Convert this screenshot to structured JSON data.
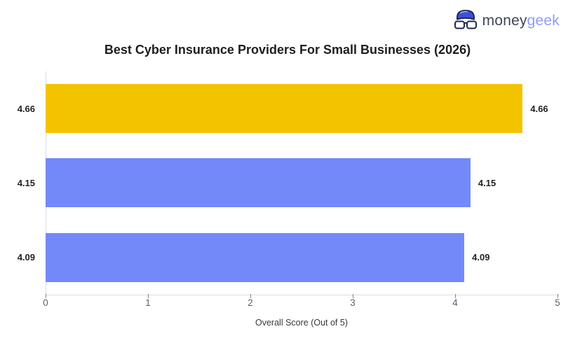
{
  "logo": {
    "brand_primary": "money",
    "brand_secondary": "geek",
    "icon": "geek-beanie-glasses-icon",
    "colors": {
      "primary_text": "#3E4656",
      "secondary_text": "#8D9EF8",
      "hat_fill": "#3B51D8",
      "hat_highlight": "#8FA2F5",
      "outline": "#20284A"
    }
  },
  "chart_data": {
    "type": "bar",
    "orientation": "horizontal",
    "title": "Best Cyber Insurance Providers For Small Businesses (2026)",
    "categories": [
      "4.66",
      "4.15",
      "4.09"
    ],
    "values": [
      4.66,
      4.15,
      4.09
    ],
    "value_labels": [
      "4.66",
      "4.15",
      "4.09"
    ],
    "bar_colors": [
      "#F4C300",
      "#7389FA",
      "#7389FA"
    ],
    "highlight_color": "#F4C300",
    "default_bar_color": "#7389FA",
    "xlabel": "Overall Score (Out of 5)",
    "xlim": [
      0,
      5
    ],
    "x_ticks": [
      "0",
      "1",
      "2",
      "3",
      "4",
      "5"
    ],
    "grid": false,
    "legend": false,
    "axis_color": "#D7DCF2",
    "tick_color": "#5E6165",
    "label_color": "#222222"
  }
}
